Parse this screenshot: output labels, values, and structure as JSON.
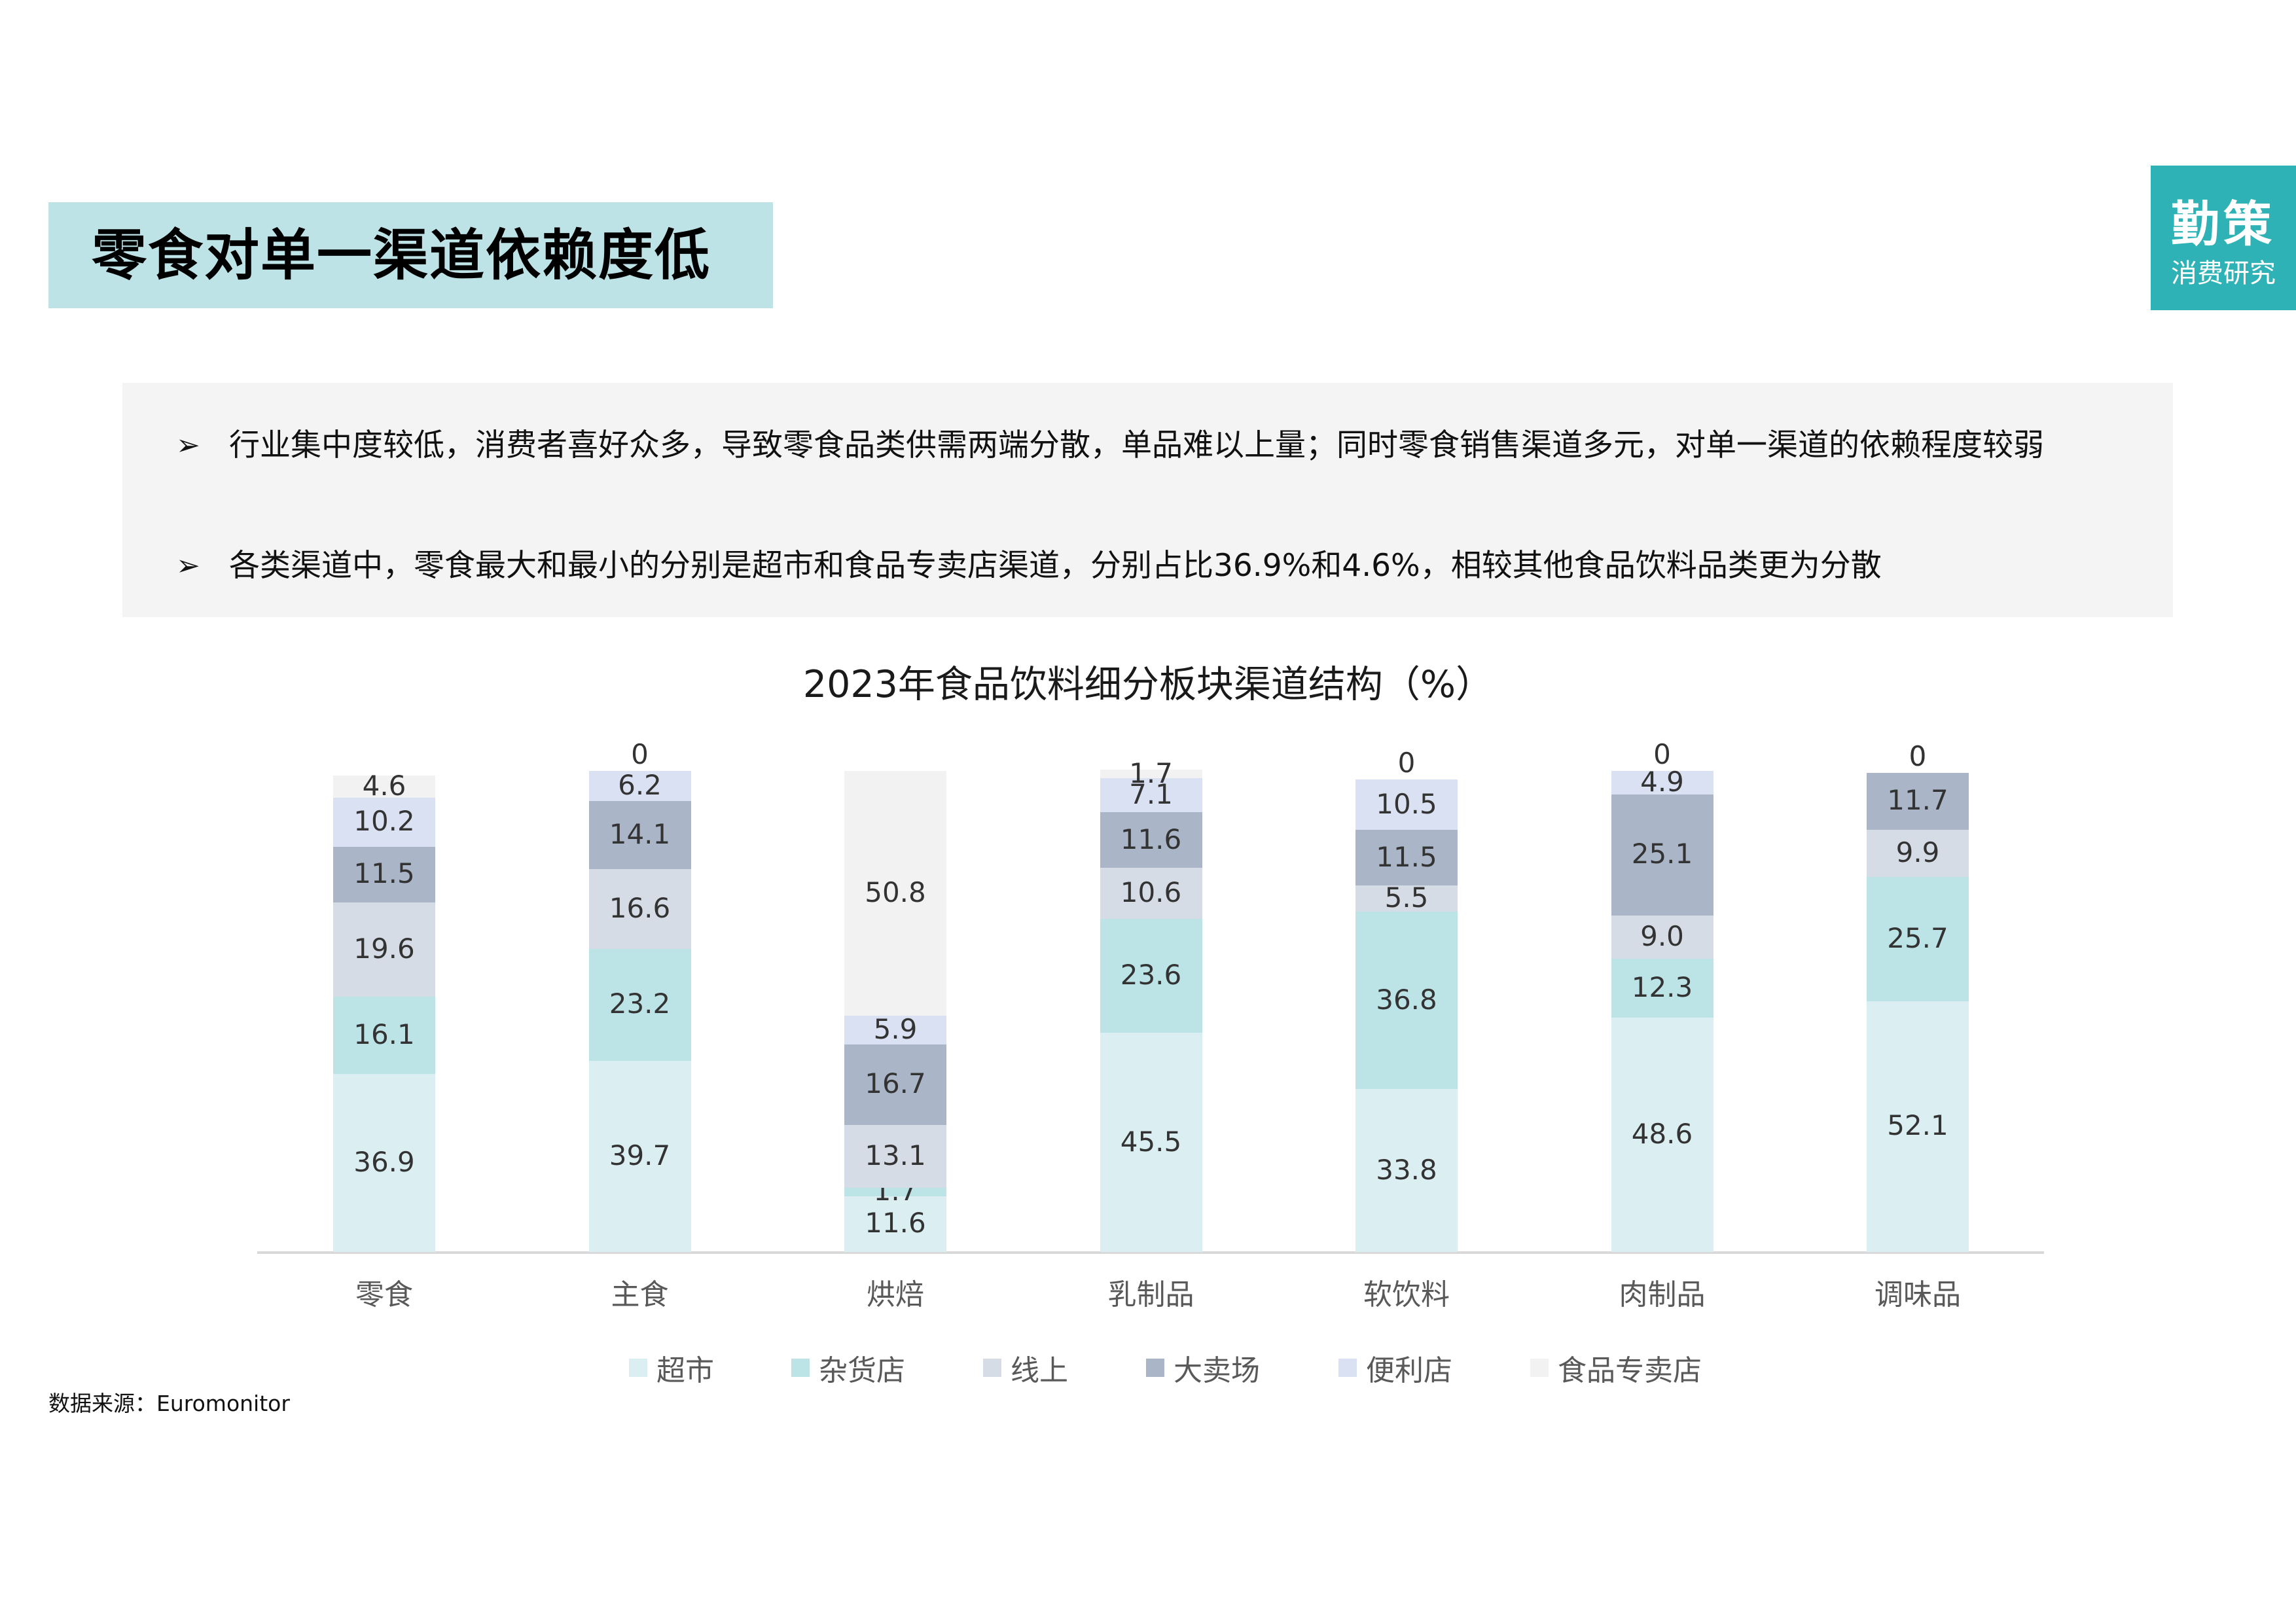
{
  "header": {
    "title": "零食对单一渠道依赖度低",
    "logo_main": "勤策",
    "logo_sub": "消费研究"
  },
  "bullets": [
    {
      "arrow": "➢",
      "text": "行业集中度较低，消费者喜好众多，导致零食品类供需两端分散，单品难以上量；同时零食销售渠道多元，对单一渠道的依赖程度较弱"
    },
    {
      "arrow": "➢",
      "text": "各类渠道中，零食最大和最小的分别是超市和食品专卖店渠道，分别占比36.9%和4.6%，相较其他食品饮料品类更为分散"
    }
  ],
  "source": "数据来源：Euromonitor",
  "colors": {
    "title_bg": "#bde3e6",
    "logo_bg": "#2eb2b5",
    "bullet_bg": "#f4f4f4"
  },
  "chart_data": {
    "type": "bar",
    "stacked": true,
    "title": "2023年食品饮料细分板块渠道结构（%）",
    "xlabel": "",
    "ylabel": "",
    "ylim": [
      0,
      100
    ],
    "grid": false,
    "legend_position": "bottom",
    "categories": [
      "零食",
      "主食",
      "烘焙",
      "乳制品",
      "软饮料",
      "肉制品",
      "调味品"
    ],
    "series": [
      {
        "name": "超市",
        "color": "#dbeff3",
        "values": [
          36.9,
          39.7,
          11.6,
          45.5,
          33.8,
          48.6,
          52.1
        ]
      },
      {
        "name": "杂货店",
        "color": "#bce3e6",
        "values": [
          16.1,
          23.2,
          1.7,
          23.6,
          36.8,
          12.3,
          25.7
        ]
      },
      {
        "name": "线上",
        "color": "#d6dce6",
        "values": [
          19.6,
          16.6,
          13.1,
          10.6,
          5.5,
          9.0,
          9.9
        ]
      },
      {
        "name": "大卖场",
        "color": "#aab6c8",
        "values": [
          11.5,
          14.1,
          16.7,
          11.6,
          11.5,
          25.1,
          11.7
        ]
      },
      {
        "name": "便利店",
        "color": "#d9e1f2",
        "values": [
          10.2,
          6.2,
          5.9,
          7.1,
          10.5,
          4.9,
          0
        ]
      },
      {
        "name": "食品专卖店",
        "color": "#f2f2f2",
        "values": [
          4.6,
          0,
          50.8,
          1.7,
          0,
          0,
          0
        ]
      }
    ],
    "value_labels": [
      [
        "36.9",
        "16.1",
        "19.6",
        "11.5",
        "10.2",
        "4.6"
      ],
      [
        "39.7",
        "23.2",
        "16.6",
        "14.1",
        "6.2",
        "0"
      ],
      [
        "11.6",
        "1.7",
        "13.1",
        "16.7",
        "5.9",
        "50.8"
      ],
      [
        "45.5",
        "23.6",
        "10.6",
        "11.6",
        "7.1",
        "1.7"
      ],
      [
        "33.8",
        "36.8",
        "5.5",
        "11.5",
        "10.5",
        "0"
      ],
      [
        "48.6",
        "12.3",
        "9.0",
        "25.1",
        "4.9",
        "0"
      ],
      [
        "52.1",
        "25.7",
        "9.9",
        "11.7",
        "0",
        "0"
      ]
    ]
  }
}
